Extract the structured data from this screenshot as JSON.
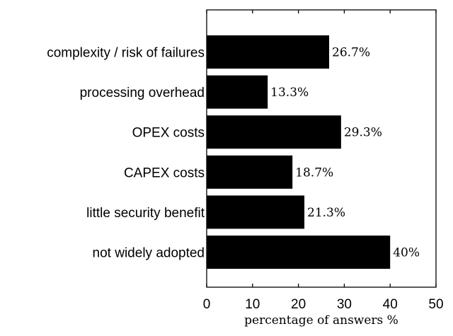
{
  "chart_data": {
    "type": "bar",
    "orientation": "horizontal",
    "categories": [
      "complexity / risk of failures",
      "processing overhead",
      "OPEX costs",
      "CAPEX costs",
      "little security benefit",
      "not widely adopted"
    ],
    "values": [
      26.7,
      13.3,
      29.3,
      18.7,
      21.3,
      40
    ],
    "data_labels": [
      "26.7%",
      "13.3%",
      "29.3%",
      "18.7%",
      "21.3%",
      "40%"
    ],
    "xlabel": "percentage of answers %",
    "ylabel": "",
    "xlim": [
      0,
      50
    ],
    "xticks": [
      0,
      10,
      20,
      30,
      40,
      50
    ],
    "xtick_labels": [
      "0",
      "10",
      "20",
      "30",
      "40",
      "50"
    ],
    "grid": false,
    "bar_color": "#000000"
  }
}
